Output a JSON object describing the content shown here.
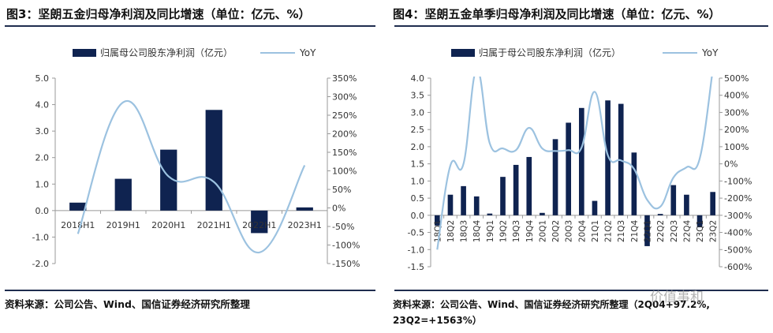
{
  "left": {
    "title": "图3：坚朗五金归母净利润及同比增速（单位：亿元、%）",
    "source": "资料来源：公司公告、Wind、国信证券经济研究所整理",
    "legend_bar": "归属母公司股东净利润（亿元）",
    "legend_line": "YoY"
  },
  "right": {
    "title": "图4：坚朗五金单季归母净利润及同比增速（单位：亿元、%）",
    "source_line1": "资料来源：公司公告、Wind、国信证券经济研究所整理（2Q04+97.2%,",
    "source_line2": "23Q2=+1563%）",
    "legend_bar": "归属于母公司股东净利润（亿元）",
    "legend_line": "YoY",
    "watermark": "价值事和"
  },
  "colors": {
    "bar": "#0f2350",
    "line": "#9cc2e0",
    "rule": "#1f2d4f"
  },
  "chart_data": [
    {
      "type": "bar",
      "title": "图3：坚朗五金归母净利润及同比增速（单位：亿元、%）",
      "categories": [
        "2018H1",
        "2019H1",
        "2020H1",
        "2021H1",
        "2022H1",
        "2023H1"
      ],
      "series": [
        {
          "name": "归属母公司股东净利润（亿元）",
          "type": "bar",
          "axis": "left",
          "values": [
            0.3,
            1.2,
            2.3,
            3.8,
            -0.85,
            0.12
          ]
        },
        {
          "name": "YoY",
          "type": "line",
          "axis": "right",
          "values": [
            -70,
            285,
            85,
            70,
            -120,
            115
          ]
        }
      ],
      "y_left": {
        "min": -2.0,
        "max": 5.0,
        "step": 1.0,
        "ticks": [
          "-2.0",
          "-1.0",
          "0.0",
          "1.0",
          "2.0",
          "3.0",
          "4.0",
          "5.0"
        ]
      },
      "y_right": {
        "min": -150,
        "max": 350,
        "step": 50,
        "ticks": [
          "-150%",
          "-100%",
          "-50%",
          "0%",
          "50%",
          "100%",
          "150%",
          "200%",
          "250%",
          "300%",
          "350%"
        ]
      }
    },
    {
      "type": "bar",
      "title": "图4：坚朗五金单季归母净利润及同比增速（单位：亿元、%）",
      "categories": [
        "18Q1",
        "18Q2",
        "18Q3",
        "18Q4",
        "19Q1",
        "19Q2",
        "19Q3",
        "19Q4",
        "20Q1",
        "20Q2",
        "20Q3",
        "20Q4",
        "21Q1",
        "21Q2",
        "21Q3",
        "21Q4",
        "22Q1",
        "22Q2",
        "22Q3",
        "22Q4",
        "23Q1",
        "23Q2"
      ],
      "series": [
        {
          "name": "归属于母公司股东净利润（亿元）",
          "type": "bar",
          "axis": "left",
          "values": [
            -0.3,
            0.6,
            0.85,
            0.55,
            0.05,
            1.12,
            1.47,
            1.7,
            0.07,
            2.22,
            2.7,
            3.13,
            0.42,
            3.35,
            3.25,
            1.83,
            -0.9,
            0.04,
            0.88,
            0.6,
            -0.35,
            0.68
          ]
        },
        {
          "name": "YoY",
          "type": "line",
          "axis": "right",
          "values": [
            -500,
            -10,
            0,
            550,
            120,
            90,
            80,
            210,
            90,
            75,
            80,
            95,
            420,
            50,
            20,
            -30,
            -210,
            -250,
            -80,
            -20,
            30,
            550
          ]
        }
      ],
      "y_left": {
        "min": -1.5,
        "max": 4.0,
        "step": 0.5,
        "ticks": [
          "-1.5",
          "-1.0",
          "-0.5",
          "0.0",
          "0.5",
          "1.0",
          "1.5",
          "2.0",
          "2.5",
          "3.0",
          "3.5",
          "4.0"
        ]
      },
      "y_right": {
        "min": -600,
        "max": 500,
        "step": 100,
        "ticks": [
          "-600%",
          "-500%",
          "-400%",
          "-300%",
          "-200%",
          "-100%",
          "0%",
          "100%",
          "200%",
          "300%",
          "400%",
          "500%"
        ]
      }
    }
  ]
}
